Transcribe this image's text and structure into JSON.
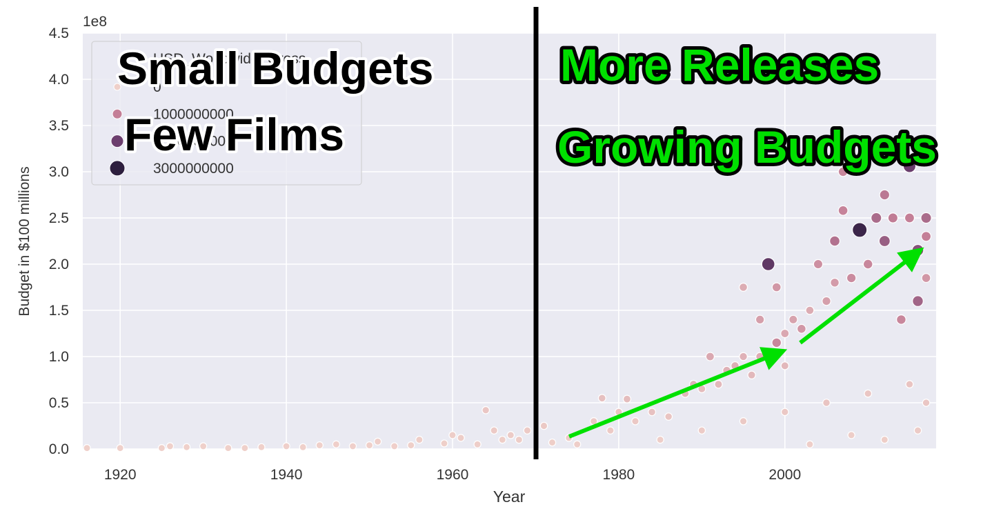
{
  "chart_data": {
    "type": "scatter",
    "x_label": "Year",
    "y_label": "Budget in $100 millions",
    "y_offset_label": "1e8",
    "xlim": [
      1915.5,
      2018.2
    ],
    "ylim": [
      0,
      4.5
    ],
    "xticks": [
      1920,
      1940,
      1960,
      1980,
      2000
    ],
    "yticks": [
      {
        "value": 0,
        "label": "0.0"
      },
      0.5,
      {
        "value": 1,
        "label": "1.0"
      },
      1.5,
      {
        "value": 2,
        "label": "2.0"
      },
      2.5,
      {
        "value": 3,
        "label": "3.0"
      },
      3.5,
      {
        "value": 4,
        "label": "4.0"
      },
      4.5
    ],
    "grid": true,
    "legend": {
      "title": "USD_Worldwide_Gross",
      "entries": [
        0,
        1000000000,
        2000000000,
        3000000000
      ],
      "colors": [
        "#efd0ca",
        "#c47f97",
        "#6c3e6e",
        "#2d1e3e"
      ],
      "corner": "upper left"
    },
    "x": [
      1916,
      1920,
      1925,
      1926,
      1928,
      1930,
      1933,
      1935,
      1937,
      1940,
      1942,
      1944,
      1946,
      1948,
      1950,
      1951,
      1953,
      1955,
      1956,
      1959,
      1960,
      1961,
      1963,
      1964,
      1965,
      1966,
      1967,
      1968,
      1969,
      1971,
      1972,
      1974,
      1975,
      1977,
      1978,
      1979,
      1980,
      1981,
      1982,
      1984,
      1985,
      1986,
      1988,
      1989,
      1990,
      1990,
      1991,
      1992,
      1993,
      1994,
      1995,
      1995,
      1995,
      1996,
      1997,
      1997,
      1998,
      1999,
      1999,
      2000,
      2000,
      2000,
      2001,
      2002,
      2003,
      2003,
      2004,
      2005,
      2005,
      2006,
      2006,
      2007,
      2007,
      2008,
      2008,
      2009,
      2010,
      2010,
      2011,
      2012,
      2012,
      2012,
      2013,
      2014,
      2015,
      2015,
      2015,
      2016,
      2016,
      2016,
      2017,
      2017,
      2017,
      2017
    ],
    "values": [
      0.01,
      0.01,
      0.01,
      0.03,
      0.02,
      0.03,
      0.01,
      0.01,
      0.02,
      0.03,
      0.02,
      0.04,
      0.05,
      0.03,
      0.04,
      0.08,
      0.03,
      0.04,
      0.1,
      0.06,
      0.15,
      0.12,
      0.05,
      0.42,
      0.2,
      0.1,
      0.15,
      0.1,
      0.2,
      0.25,
      0.07,
      0.12,
      0.05,
      0.3,
      0.55,
      0.2,
      0.4,
      0.54,
      0.3,
      0.4,
      0.1,
      0.35,
      0.6,
      0.7,
      0.65,
      0.2,
      1.0,
      0.7,
      0.85,
      0.9,
      1.0,
      1.75,
      0.3,
      0.8,
      1.0,
      1.4,
      2.0,
      1.15,
      1.75,
      1.25,
      0.9,
      0.4,
      1.4,
      1.3,
      1.5,
      0.05,
      2.0,
      1.6,
      0.5,
      2.25,
      1.8,
      2.58,
      3.0,
      1.85,
      0.15,
      2.37,
      2.0,
      0.6,
      2.5,
      2.25,
      2.75,
      0.1,
      2.5,
      1.4,
      3.06,
      2.5,
      0.7,
      2.15,
      1.6,
      0.2,
      2.5,
      2.3,
      0.5,
      1.85
    ],
    "sizes": [
      1000000,
      2000000,
      3000000,
      5000000,
      2000000,
      4000000,
      1000000,
      2000000,
      3000000,
      8000000,
      5000000,
      6000000,
      9000000,
      7000000,
      10000000,
      20000000,
      9000000,
      12000000,
      30000000,
      15000000,
      40000000,
      35000000,
      20000000,
      120000000,
      80000000,
      30000000,
      60000000,
      40000000,
      70000000,
      90000000,
      30000000,
      50000000,
      20000000,
      100000000,
      200000000,
      80000000,
      150000000,
      250000000,
      100000000,
      180000000,
      20000000,
      150000000,
      300000000,
      350000000,
      250000000,
      60000000,
      500000000,
      300000000,
      400000000,
      420000000,
      380000000,
      450000000,
      90000000,
      300000000,
      450000000,
      600000000,
      2200000000,
      900000000,
      700000000,
      500000000,
      300000000,
      100000000,
      550000000,
      700000000,
      450000000,
      20000000,
      800000000,
      600000000,
      150000000,
      1200000000,
      650000000,
      950000000,
      900000000,
      850000000,
      40000000,
      2780000000,
      900000000,
      120000000,
      1300000000,
      1500000000,
      1100000000,
      30000000,
      1050000000,
      900000000,
      2050000000,
      1000000000,
      150000000,
      1700000000,
      1400000000,
      60000000,
      1300000000,
      1000000000,
      120000000,
      700000000
    ]
  },
  "annotations": {
    "left_1": "Small Budgets",
    "left_2": "Few Films",
    "right_1": "More Releases",
    "right_2": "Growing Budgets"
  }
}
